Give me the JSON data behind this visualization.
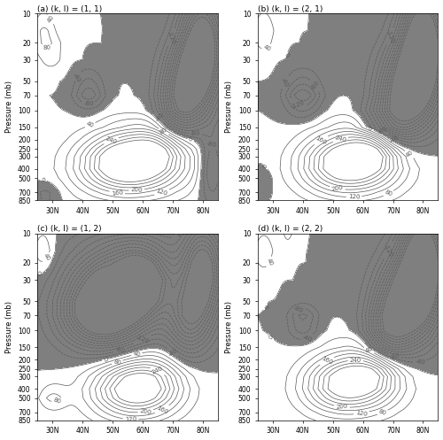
{
  "titles": [
    "(a) (k, l) = (1, 1)",
    "(b) (k, l) = (2, 1)",
    "(c) (k, l) = (1, 2)",
    "(d) (k, l) = (2, 2)"
  ],
  "ylabel": "Pressure (mb)",
  "yticks": [
    10,
    20,
    30,
    50,
    70,
    100,
    150,
    200,
    250,
    300,
    400,
    500,
    700,
    850
  ],
  "xticks": [
    30,
    40,
    50,
    60,
    70,
    80
  ],
  "lat_min": 25,
  "lat_max": 85,
  "shade_color": "#7f7f7f",
  "line_color": "#5a5a5a",
  "pos_fill_color": "#ffffff",
  "figsize": [
    5.0,
    4.97
  ],
  "dpi": 100
}
